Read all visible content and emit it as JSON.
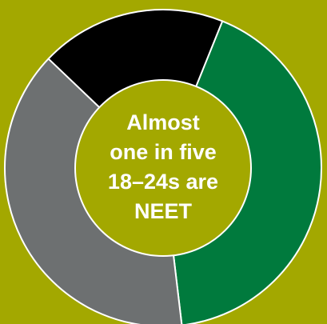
{
  "chart_data": {
    "type": "pie",
    "donut": true,
    "categories": [
      "",
      "",
      ""
    ],
    "values": [
      42,
      39,
      19
    ],
    "colors": [
      "#007a3d",
      "#6d7071",
      "#000000"
    ],
    "start_angle_deg": 22,
    "center_text": {
      "lines": [
        "Almost",
        "one in five",
        "18–24s are",
        "NEET"
      ]
    },
    "legend": "none"
  },
  "colors": {
    "background": "#a3a800",
    "hole": "#a3a800",
    "separator": "#ffffff",
    "text": "#ffffff"
  }
}
